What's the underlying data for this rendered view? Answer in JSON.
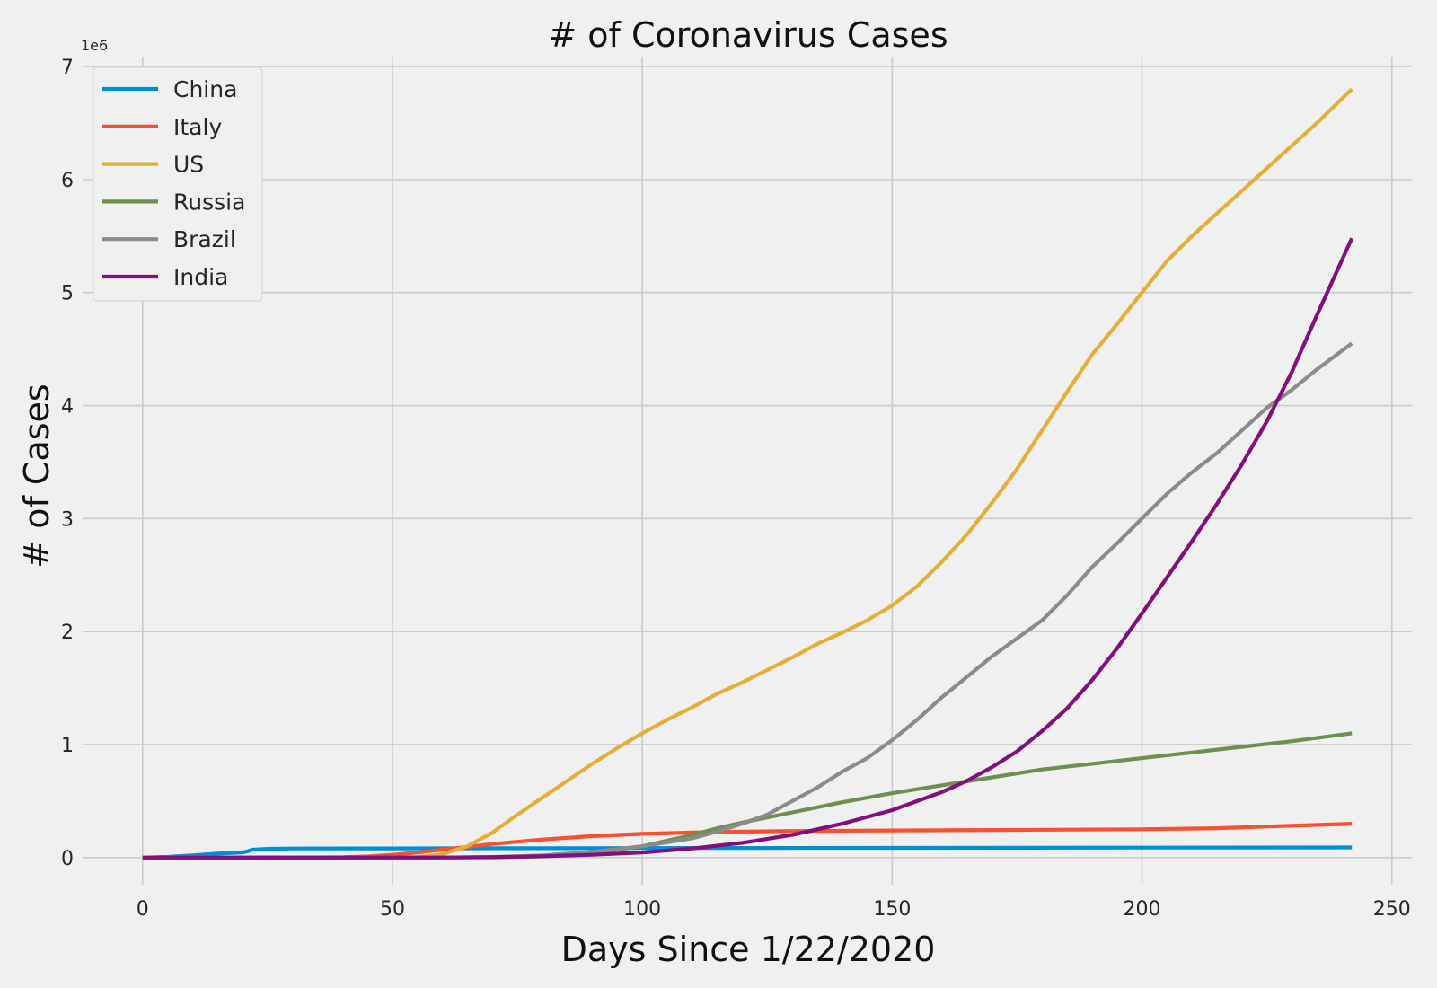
{
  "chart_data": {
    "type": "line",
    "title": "# of Coronavirus Cases",
    "xlabel": "Days Since 1/22/2020",
    "ylabel": "# of Cases",
    "y_offset_label": "1e6",
    "xlim": [
      -12,
      254
    ],
    "ylim": [
      -0.24,
      7.08
    ],
    "x_ticks": [
      0,
      50,
      100,
      150,
      200,
      250
    ],
    "y_ticks": [
      0,
      1,
      2,
      3,
      4,
      5,
      6,
      7
    ],
    "grid": true,
    "legend_position": "top-left",
    "series": [
      {
        "name": "China",
        "color": "#008fd5",
        "x": [
          0,
          5,
          10,
          15,
          20,
          21,
          22,
          25,
          30,
          40,
          50,
          60,
          80,
          100,
          120,
          150,
          200,
          242
        ],
        "y": [
          0.0005,
          0.006,
          0.02,
          0.035,
          0.045,
          0.055,
          0.07,
          0.077,
          0.08,
          0.081,
          0.081,
          0.082,
          0.083,
          0.084,
          0.085,
          0.086,
          0.088,
          0.09
        ]
      },
      {
        "name": "Italy",
        "color": "#fc4f30",
        "x": [
          0,
          30,
          40,
          45,
          50,
          55,
          60,
          65,
          70,
          80,
          90,
          100,
          110,
          120,
          130,
          150,
          175,
          200,
          215,
          242
        ],
        "y": [
          0,
          0.0003,
          0.003,
          0.01,
          0.025,
          0.045,
          0.07,
          0.095,
          0.12,
          0.16,
          0.19,
          0.21,
          0.222,
          0.23,
          0.235,
          0.24,
          0.245,
          0.25,
          0.26,
          0.3
        ]
      },
      {
        "name": "US",
        "color": "#e5ae38",
        "x": [
          0,
          50,
          55,
          60,
          65,
          70,
          75,
          80,
          85,
          90,
          95,
          100,
          105,
          110,
          115,
          120,
          125,
          130,
          135,
          140,
          145,
          150,
          155,
          160,
          165,
          170,
          175,
          180,
          185,
          190,
          195,
          200,
          205,
          210,
          215,
          220,
          225,
          230,
          235,
          242
        ],
        "y": [
          0,
          0.001,
          0.005,
          0.03,
          0.1,
          0.22,
          0.38,
          0.53,
          0.68,
          0.83,
          0.97,
          1.1,
          1.22,
          1.33,
          1.45,
          1.55,
          1.66,
          1.77,
          1.89,
          1.99,
          2.1,
          2.23,
          2.4,
          2.62,
          2.86,
          3.14,
          3.44,
          3.78,
          4.12,
          4.45,
          4.72,
          5.0,
          5.28,
          5.5,
          5.7,
          5.9,
          6.1,
          6.3,
          6.5,
          6.8
        ]
      },
      {
        "name": "Russia",
        "color": "#6d904f",
        "x": [
          0,
          50,
          60,
          70,
          80,
          90,
          100,
          105,
          110,
          115,
          120,
          130,
          140,
          150,
          160,
          170,
          180,
          190,
          200,
          210,
          220,
          230,
          242
        ],
        "y": [
          0,
          0.0001,
          0.0005,
          0.002,
          0.01,
          0.04,
          0.1,
          0.15,
          0.2,
          0.26,
          0.31,
          0.4,
          0.49,
          0.57,
          0.64,
          0.71,
          0.78,
          0.83,
          0.88,
          0.93,
          0.98,
          1.03,
          1.1
        ]
      },
      {
        "name": "Brazil",
        "color": "#8b8b8b",
        "x": [
          0,
          60,
          70,
          80,
          90,
          100,
          110,
          115,
          120,
          125,
          130,
          135,
          140,
          145,
          150,
          155,
          160,
          165,
          170,
          175,
          180,
          185,
          190,
          195,
          200,
          205,
          210,
          215,
          220,
          225,
          230,
          235,
          242
        ],
        "y": [
          0,
          0.001,
          0.005,
          0.02,
          0.05,
          0.1,
          0.17,
          0.23,
          0.3,
          0.38,
          0.5,
          0.62,
          0.76,
          0.88,
          1.04,
          1.22,
          1.42,
          1.6,
          1.78,
          1.94,
          2.1,
          2.32,
          2.57,
          2.78,
          3.0,
          3.22,
          3.41,
          3.58,
          3.78,
          3.98,
          4.14,
          4.32,
          4.55
        ]
      },
      {
        "name": "India",
        "color": "#810f7c",
        "x": [
          0,
          50,
          60,
          70,
          80,
          90,
          100,
          110,
          120,
          130,
          140,
          150,
          160,
          165,
          170,
          175,
          180,
          185,
          190,
          195,
          200,
          205,
          210,
          215,
          220,
          225,
          230,
          235,
          242
        ],
        "y": [
          0,
          0.0005,
          0.001,
          0.005,
          0.012,
          0.025,
          0.045,
          0.08,
          0.13,
          0.2,
          0.3,
          0.42,
          0.58,
          0.68,
          0.8,
          0.94,
          1.12,
          1.32,
          1.57,
          1.85,
          2.16,
          2.48,
          2.8,
          3.13,
          3.48,
          3.86,
          4.3,
          4.8,
          5.48
        ]
      }
    ]
  }
}
